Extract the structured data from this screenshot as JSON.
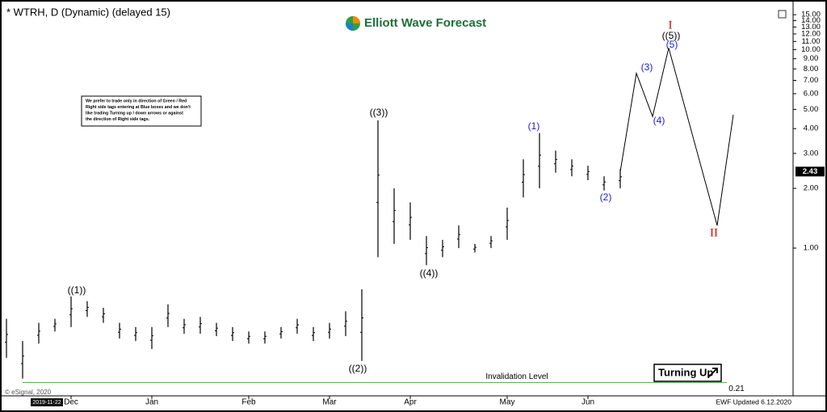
{
  "chart_data": {
    "type": "hl_bars",
    "title": "* WTRH, D (Dynamic) (delayed 15)",
    "logo": "Elliott Wave Forecast",
    "note": [
      "We prefer to trade only in direction of Green / Red",
      "Right side tags entering at Blue boxes and we don't",
      "like trading Turning up / down arrows or against",
      "the direction of Right side tags."
    ],
    "categories": [
      null,
      null,
      null,
      null,
      "Dec",
      null,
      null,
      null,
      null,
      "Jan",
      null,
      null,
      null,
      null,
      null,
      "Feb",
      null,
      null,
      null,
      null,
      "Mar",
      null,
      null,
      null,
      null,
      "Apr",
      null,
      null,
      null,
      null,
      null,
      "May",
      null,
      null,
      null,
      null,
      "Jun",
      null,
      null,
      null,
      null,
      null,
      null,
      null,
      null,
      null
    ],
    "high": [
      0.44,
      0.34,
      0.42,
      0.44,
      0.57,
      0.54,
      0.5,
      0.42,
      0.4,
      0.4,
      0.52,
      0.44,
      0.45,
      0.42,
      0.4,
      0.38,
      0.38,
      0.4,
      0.44,
      0.4,
      0.42,
      0.48,
      0.62,
      4.4,
      2.0,
      1.7,
      1.15,
      1.1,
      1.3,
      1.05,
      1.15,
      1.6,
      2.8,
      3.8,
      3.1,
      2.8,
      2.6,
      2.3,
      2.5,
      null,
      null,
      null,
      null,
      null,
      null,
      null
    ],
    "low": [
      0.28,
      0.22,
      0.33,
      0.38,
      0.4,
      0.45,
      0.42,
      0.35,
      0.34,
      0.31,
      0.4,
      0.37,
      0.37,
      0.36,
      0.34,
      0.33,
      0.33,
      0.35,
      0.37,
      0.34,
      0.35,
      0.36,
      0.27,
      0.9,
      1.05,
      1.1,
      0.82,
      0.9,
      1.0,
      0.95,
      1.0,
      1.1,
      1.8,
      2.0,
      2.4,
      2.3,
      2.2,
      1.95,
      2.0,
      null,
      null,
      null,
      null,
      null,
      null,
      null
    ],
    "projection": {
      "color": "#000000",
      "values": [
        null,
        null,
        null,
        null,
        null,
        null,
        null,
        null,
        null,
        null,
        null,
        null,
        null,
        null,
        null,
        null,
        null,
        null,
        null,
        null,
        null,
        null,
        null,
        null,
        null,
        null,
        null,
        null,
        null,
        null,
        null,
        null,
        null,
        null,
        null,
        null,
        null,
        null,
        2.43,
        7.6,
        4.6,
        10.2,
        5.13,
        2.58,
        1.3,
        4.7
      ]
    },
    "wave_labels": [
      {
        "text": "((1))",
        "color": "#000000"
      },
      {
        "text": "((2))",
        "color": "#000000"
      },
      {
        "text": "((3))",
        "color": "#000000"
      },
      {
        "text": "((4))",
        "color": "#000000"
      },
      {
        "text": "(1)",
        "color": "#1a1adc"
      },
      {
        "text": "(2)",
        "color": "#1a1adc"
      },
      {
        "text": "(3)",
        "color": "#1a1adc"
      },
      {
        "text": "(4)",
        "color": "#1a1adc"
      },
      {
        "text": "((5))",
        "color": "#000000"
      },
      {
        "text": "(5)",
        "color": "#1a1adc"
      },
      {
        "text": "I",
        "color": "#e00000"
      },
      {
        "text": "II",
        "color": "#e00000"
      }
    ],
    "log_scale": true,
    "ylim": [
      0.18,
      16.2
    ],
    "yticks": [
      {
        "value": 15,
        "label": "15.00"
      },
      {
        "value": 14,
        "label": "14.00"
      },
      {
        "value": 13,
        "label": "13.00"
      },
      {
        "value": 12,
        "label": "12.00"
      },
      {
        "value": 11,
        "label": "11.00"
      },
      {
        "value": 10,
        "label": "10.00"
      },
      {
        "value": 9,
        "label": "9.00"
      },
      {
        "value": 8,
        "label": "8.00"
      },
      {
        "value": 7,
        "label": "7.00"
      },
      {
        "value": 6,
        "label": "6.00"
      },
      {
        "value": 5,
        "label": "5.00"
      },
      {
        "value": 4,
        "label": "4.00"
      },
      {
        "value": 3,
        "label": "3.00"
      },
      {
        "value": 2,
        "label": "2.00"
      },
      {
        "value": 1,
        "label": "1.00"
      }
    ],
    "last_price": {
      "value": 2.43,
      "label": "2.43"
    },
    "invalidation": {
      "label": "Invalidation Level",
      "value": 0.21,
      "value_label": "0.21",
      "color": "#33cc33"
    },
    "tag": "Turning Up",
    "copyright": "© eSignal, 2020",
    "updated": "EWF Updated 6.12.2020",
    "start_date": "2019-11-22"
  }
}
